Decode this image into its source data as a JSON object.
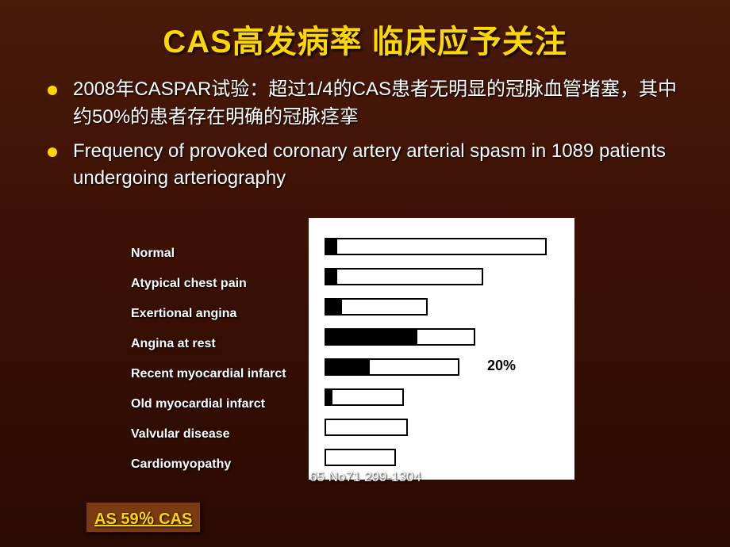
{
  "slide": {
    "title": "CAS高发病率 临床应予关注",
    "bullets": [
      "2008年CASPAR试验：超过1/4的CAS患者无明显的冠脉血管堵塞，其中约50%的患者存在明确的冠脉痉挛",
      "Frequency of provoked coronary artery arterial spasm in 1089 patients undergoing arteriography"
    ],
    "chart": {
      "type": "bar",
      "background_color": "#ffffff",
      "bar_border_color": "#000000",
      "bar_fill_color": "#000000",
      "label_color": "#ffffff",
      "label_fontsize": 16,
      "label_fontweight": "bold",
      "annotation_color": "#000000",
      "annotation_fontsize": 18,
      "rows": [
        {
          "label": "Normal",
          "track_width": 280,
          "fill_width": 14,
          "annotation": ""
        },
        {
          "label": "Atypical    chest pain",
          "track_width": 200,
          "fill_width": 14,
          "annotation": ""
        },
        {
          "label": "Exertional angina",
          "track_width": 130,
          "fill_width": 20,
          "annotation": ""
        },
        {
          "label": "Angina at rest",
          "track_width": 190,
          "fill_width": 115,
          "annotation": ""
        },
        {
          "label": "Recent myocardial infarct",
          "track_width": 170,
          "fill_width": 55,
          "annotation": "20%"
        },
        {
          "label": "Old myocardial infarct",
          "track_width": 100,
          "fill_width": 8,
          "annotation": ""
        },
        {
          "label": "Valvular disease",
          "track_width": 105,
          "fill_width": 0,
          "annotation": ""
        },
        {
          "label": "Cardiomyopathy",
          "track_width": 90,
          "fill_width": 0,
          "annotation": ""
        }
      ]
    },
    "citation": "65   No71   299-1304",
    "footer_link": "AS   59％ CAS"
  },
  "colors": {
    "title_color": "#ffd700",
    "text_color": "#ffffff",
    "bg_top": "#4a1a0a",
    "bg_bottom": "#2a0a02",
    "footer_bg": "#7a3a12"
  }
}
